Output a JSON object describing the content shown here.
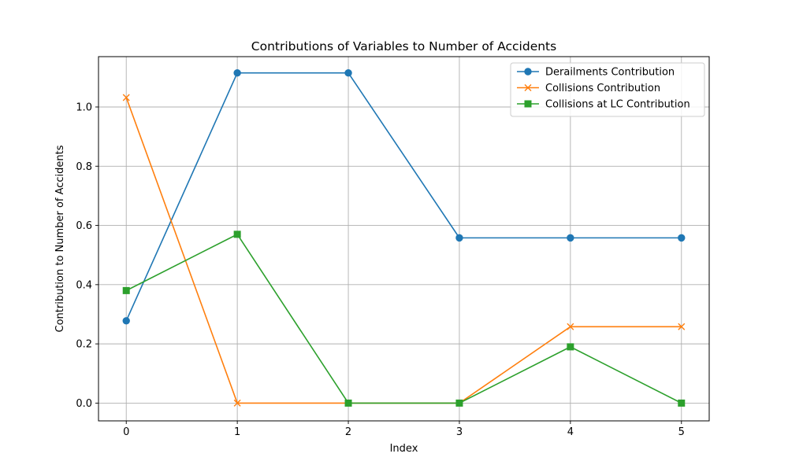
{
  "chart_data": {
    "type": "line",
    "title": "Contributions of Variables to Number of Accidents",
    "xlabel": "Index",
    "ylabel": "Contribution to Number of Accidents",
    "x": [
      0,
      1,
      2,
      3,
      4,
      5
    ],
    "xticks": [
      "0",
      "1",
      "2",
      "3",
      "4",
      "5"
    ],
    "yticks": [
      "0.0",
      "0.2",
      "0.4",
      "0.6",
      "0.8",
      "1.0"
    ],
    "xlim": [
      -0.25,
      5.25
    ],
    "ylim": [
      -0.06,
      1.17
    ],
    "grid": true,
    "legend_position": "top-right",
    "series": [
      {
        "name": "Derailments Contribution",
        "color": "#1f77b4",
        "marker": "circle",
        "values": [
          0.278,
          1.115,
          1.115,
          0.558,
          0.558,
          0.558
        ]
      },
      {
        "name": "Collisions Contribution",
        "color": "#ff7f0e",
        "marker": "x",
        "values": [
          1.032,
          0.0,
          0.0,
          0.0,
          0.258,
          0.258
        ]
      },
      {
        "name": "Collisions at LC Contribution",
        "color": "#2ca02c",
        "marker": "square",
        "values": [
          0.38,
          0.57,
          0.0,
          0.0,
          0.19,
          0.0
        ]
      }
    ]
  }
}
